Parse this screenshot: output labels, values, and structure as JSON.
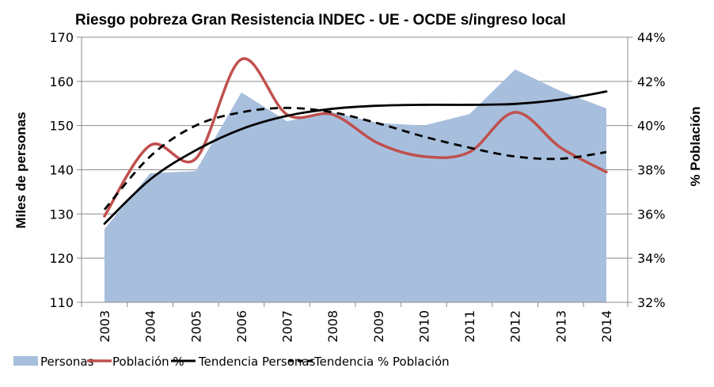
{
  "chart_data": {
    "type": "area+line",
    "title": "Riesgo pobreza Gran Resistencia INDEC - UE - OCDE s/ingreso local",
    "xlabel": "",
    "ylabel_left": "Miles de personas",
    "ylabel_right": "% Población",
    "categories": [
      "2003",
      "2004",
      "2005",
      "2006",
      "2007",
      "2008",
      "2009",
      "2010",
      "2011",
      "2012",
      "2013",
      "2014"
    ],
    "ylim_left": [
      110,
      170
    ],
    "yticks_left": [
      110,
      120,
      130,
      140,
      150,
      160,
      170
    ],
    "ylim_right": [
      32,
      44
    ],
    "yticks_right": [
      "32%",
      "34%",
      "36%",
      "38%",
      "40%",
      "42%",
      "44%"
    ],
    "yticks_right_values": [
      32,
      34,
      36,
      38,
      40,
      42,
      44
    ],
    "grid": true,
    "legend_position": "bottom",
    "series": [
      {
        "name": "Personas",
        "kind": "area",
        "axis": "left",
        "color": "#a7bfdd",
        "values": [
          126.6,
          139.2,
          139.7,
          157.5,
          151.0,
          153.0,
          150.6,
          150.0,
          152.6,
          162.7,
          157.8,
          153.9
        ]
      },
      {
        "name": "Población %",
        "kind": "smooth-line",
        "axis": "right",
        "color": "#c0504d",
        "values": [
          35.9,
          39.1,
          38.5,
          43.0,
          40.5,
          40.5,
          39.2,
          38.6,
          38.8,
          40.6,
          39.0,
          37.9
        ]
      },
      {
        "name": "Tendencia Personas",
        "kind": "trend-line",
        "axis": "left",
        "color": "#000000",
        "dash": false,
        "values": [
          127.8,
          137.8,
          144.4,
          149.2,
          152.2,
          153.8,
          154.5,
          154.7,
          154.7,
          154.9,
          155.9,
          157.7
        ]
      },
      {
        "name": "Tendencia % Población",
        "kind": "trend-line",
        "axis": "right",
        "color": "#000000",
        "dash": true,
        "values": [
          36.2,
          38.6,
          40.0,
          40.6,
          40.8,
          40.6,
          40.1,
          39.5,
          39.0,
          38.6,
          38.5,
          38.8
        ]
      }
    ]
  }
}
